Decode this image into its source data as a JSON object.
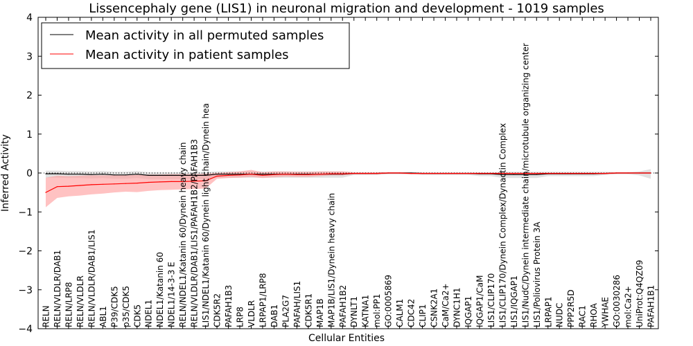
{
  "chart_data": {
    "type": "line",
    "title": "Lissencephaly gene (LIS1) in neuronal migration and development - 1019 samples",
    "xlabel": "Cellular Entities",
    "ylabel": "Inferred Activity",
    "ylim": [
      -4,
      4
    ],
    "yticks": [
      -4,
      -3,
      -2,
      -1,
      0,
      1,
      2,
      3,
      4
    ],
    "ytick_labels": [
      "−4",
      "−3",
      "−2",
      "−1",
      "0",
      "1",
      "2",
      "3",
      "4"
    ],
    "grid": false,
    "legend_position": "top-left",
    "reference_line": 0,
    "categories": [
      "RELN",
      "RELN/VLDLR/DAB1",
      "RELN/LRP8",
      "RELN/VLDLR",
      "RELN/VLDLR/DAB1/LIS1",
      "ABL1",
      "P39/CDK5",
      "p35/CDK5",
      "CDK5",
      "NDEL1",
      "NDEL1/Katanin 60",
      "NDEL1/14-3-3 E",
      "RELN/NDEL1/Katanin 60/Dynein heavy chain",
      "RELN/VLDLR/DAB1/LIS1/PAFAH1B2/PAFAH1B3",
      "LIS1/NDEL1/Katanin 60/Dynein light chain/Dynein hea",
      "CDK5R2",
      "PAFAH1B3",
      "LRP8",
      "VLDLR",
      "LRPAP1/LRP8",
      "DAB1",
      "PLA2G7",
      "PAFAH/LIS1",
      "CDK5R1",
      "MAP1B",
      "MAP1B/LIS1/Dynein heavy chain",
      "PAFAH1B2",
      "DYNLT1",
      "KATNA1",
      "mol:PP1",
      "GO:0005869",
      "CALM1",
      "CDC42",
      "CLIP1",
      "CSNK2A1",
      "CaM/Ca2+",
      "DYNC1H1",
      "IQGAP1",
      "IQGAP1/CaM",
      "LIS1/CLIP170",
      "LIS1/CLIP170/Dynein Complex/Dynactin Complex",
      "LIS1/IQGAP1",
      "LIS1/NudC/Dynein intermediate chain/microtubule organizing center",
      "LIS1/Poliovirus Protein 3A",
      "LRPAP1",
      "NUDC",
      "PPP2R5D",
      "RAC1",
      "RHOA",
      "YWHAE",
      "GO:0030286",
      "mol:Ca2+",
      "UniProt:Q4QZ09",
      "PAFAH1B1"
    ],
    "series": [
      {
        "name": "Mean activity in all permuted samples",
        "color": "#000000",
        "band_color": "#c8c8c8",
        "values": [
          -0.02,
          -0.02,
          -0.03,
          -0.03,
          -0.04,
          -0.03,
          -0.05,
          -0.05,
          -0.03,
          -0.06,
          -0.06,
          -0.06,
          -0.06,
          -0.06,
          -0.06,
          -0.03,
          -0.03,
          -0.03,
          -0.03,
          -0.03,
          -0.03,
          -0.03,
          -0.03,
          -0.03,
          -0.03,
          -0.03,
          -0.03,
          -0.01,
          -0.01,
          -0.01,
          0,
          0,
          0,
          -0.01,
          -0.01,
          -0.01,
          -0.01,
          -0.01,
          -0.02,
          -0.02,
          -0.04,
          -0.04,
          -0.04,
          -0.04,
          -0.02,
          -0.02,
          -0.02,
          -0.02,
          -0.02,
          -0.01,
          0,
          0,
          0,
          0
        ],
        "lower": [
          -0.12,
          -0.12,
          -0.13,
          -0.13,
          -0.14,
          -0.13,
          -0.15,
          -0.15,
          -0.13,
          -0.16,
          -0.16,
          -0.16,
          -0.16,
          -0.16,
          -0.16,
          -0.12,
          -0.12,
          -0.12,
          -0.12,
          -0.12,
          -0.12,
          -0.12,
          -0.12,
          -0.12,
          -0.12,
          -0.12,
          -0.12,
          -0.05,
          -0.05,
          -0.05,
          -0.03,
          -0.03,
          -0.03,
          -0.05,
          -0.05,
          -0.05,
          -0.05,
          -0.05,
          -0.08,
          -0.08,
          -0.13,
          -0.13,
          -0.13,
          -0.13,
          -0.08,
          -0.08,
          -0.08,
          -0.08,
          -0.08,
          -0.05,
          -0.03,
          -0.03,
          -0.06,
          -0.15
        ],
        "upper": [
          0.06,
          0.06,
          0.05,
          0.05,
          0.04,
          0.05,
          0.03,
          0.03,
          0.05,
          0.02,
          0.02,
          0.02,
          0.02,
          0.02,
          0.02,
          0.04,
          0.04,
          0.04,
          0.04,
          0.04,
          0.04,
          0.04,
          0.04,
          0.04,
          0.04,
          0.04,
          0.04,
          0.02,
          0.02,
          0.02,
          0.02,
          0.02,
          0.02,
          0.02,
          0.02,
          0.02,
          0.02,
          0.02,
          0.02,
          0.02,
          0.03,
          0.03,
          0.03,
          0.03,
          0.03,
          0.03,
          0.03,
          0.03,
          0.03,
          0.03,
          0.02,
          0.02,
          0.04,
          0.1
        ]
      },
      {
        "name": "Mean activity in patient samples",
        "color": "#ff0000",
        "band_color": "#ff9999",
        "values": [
          -0.5,
          -0.35,
          -0.34,
          -0.32,
          -0.3,
          -0.29,
          -0.28,
          -0.27,
          -0.26,
          -0.24,
          -0.23,
          -0.22,
          -0.22,
          -0.21,
          -0.2,
          -0.08,
          -0.06,
          -0.05,
          -0.03,
          -0.06,
          -0.04,
          -0.03,
          -0.04,
          -0.04,
          -0.03,
          -0.02,
          -0.02,
          -0.01,
          -0.01,
          -0.01,
          0,
          0,
          -0.01,
          -0.01,
          -0.01,
          -0.01,
          -0.01,
          -0.01,
          -0.01,
          -0.01,
          -0.01,
          -0.01,
          -0.01,
          -0.01,
          -0.01,
          -0.01,
          -0.01,
          -0.01,
          -0.01,
          -0.01,
          0,
          0,
          0,
          0
        ],
        "lower": [
          -0.88,
          -0.64,
          -0.6,
          -0.58,
          -0.55,
          -0.53,
          -0.5,
          -0.48,
          -0.49,
          -0.46,
          -0.44,
          -0.43,
          -0.42,
          -0.41,
          -0.4,
          -0.15,
          -0.13,
          -0.12,
          -0.1,
          -0.13,
          -0.11,
          -0.09,
          -0.1,
          -0.1,
          -0.08,
          -0.06,
          -0.06,
          -0.03,
          -0.03,
          -0.03,
          -0.02,
          -0.02,
          -0.03,
          -0.03,
          -0.03,
          -0.03,
          -0.03,
          -0.03,
          -0.03,
          -0.03,
          -0.03,
          -0.03,
          -0.03,
          -0.03,
          -0.03,
          -0.03,
          -0.03,
          -0.03,
          -0.03,
          -0.03,
          -0.02,
          -0.02,
          -0.02,
          -0.02
        ],
        "upper": [
          -0.12,
          -0.07,
          -0.08,
          -0.07,
          -0.06,
          -0.06,
          -0.06,
          -0.06,
          -0.05,
          -0.04,
          -0.04,
          -0.03,
          -0.03,
          -0.03,
          -0.02,
          0,
          0.02,
          0.04,
          0.08,
          0.02,
          0.04,
          0.04,
          0.03,
          0.03,
          0.04,
          0.04,
          0.04,
          0.02,
          0.02,
          0.02,
          0.02,
          0.02,
          0.01,
          0.01,
          0.01,
          0.01,
          0.01,
          0.01,
          0.01,
          0.01,
          0.01,
          0.01,
          0.01,
          0.01,
          0.01,
          0.01,
          0.01,
          0.01,
          0.01,
          0.01,
          0.02,
          0.02,
          0.02,
          0.02
        ]
      }
    ]
  }
}
